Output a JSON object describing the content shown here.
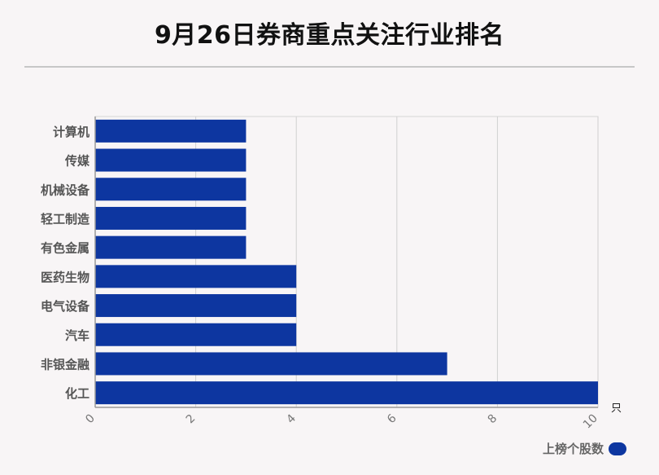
{
  "chart_data": {
    "type": "bar",
    "orientation": "horizontal",
    "title": "9月26日券商重点关注行业排名",
    "categories": [
      "计算机",
      "传媒",
      "机械设备",
      "轻工制造",
      "有色金属",
      "医药生物",
      "电气设备",
      "汽车",
      "非银金融",
      "化工"
    ],
    "series": [
      {
        "name": "上榜个股数",
        "values": [
          3,
          3,
          3,
          3,
          3,
          4,
          4,
          4,
          7,
          10
        ]
      }
    ],
    "xunit": "只",
    "xlim": [
      0,
      10
    ],
    "xticks": [
      0,
      2,
      4,
      6,
      8,
      10
    ],
    "grid": true,
    "legend_position": "bottom-right",
    "colors": {
      "bar": "#0d36a0",
      "grid": "#d0d0d0",
      "axis": "#999999"
    }
  }
}
